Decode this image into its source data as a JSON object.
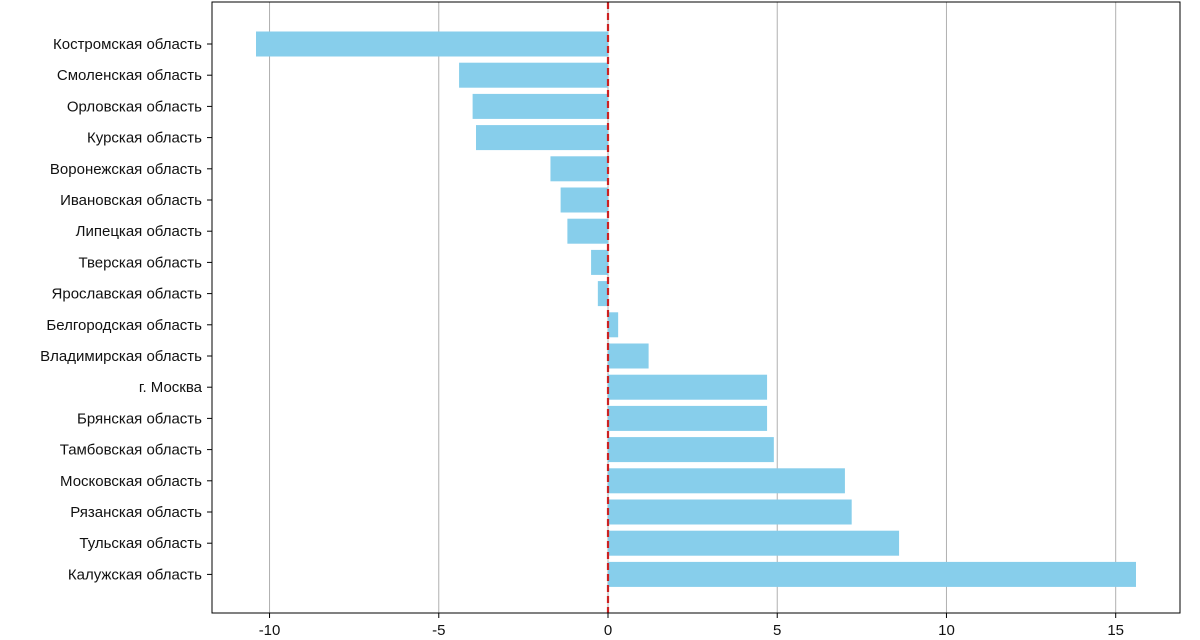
{
  "chart_data": {
    "type": "bar",
    "orientation": "horizontal",
    "categories": [
      "Костромская область",
      "Смоленская область",
      "Орловская область",
      "Курская область",
      "Воронежская область",
      "Ивановская область",
      "Липецкая область",
      "Тверская область",
      "Ярославская область",
      "Белгородская область",
      "Владимирская область",
      "г. Москва",
      "Брянская область",
      "Тамбовская область",
      "Московская область",
      "Рязанская область",
      "Тульская область",
      "Калужская область"
    ],
    "values": [
      -10.4,
      -4.4,
      -4.0,
      -3.9,
      -1.7,
      -1.4,
      -1.2,
      -0.5,
      -0.3,
      0.3,
      1.2,
      4.7,
      4.7,
      4.9,
      7.0,
      7.2,
      8.6,
      15.6
    ],
    "xlim": [
      -11.7,
      16.9
    ],
    "xticks": [
      -10,
      -5,
      0,
      5,
      10,
      15
    ],
    "xtick_labels": [
      "-10",
      "-5",
      "0",
      "5",
      "10",
      "15"
    ],
    "grid": "vertical",
    "reference_line": {
      "x": 0,
      "style": "dashed"
    },
    "colors": {
      "bar": "#87ceeb",
      "reference_line": "#cc2222",
      "grid": "#b0b0b0",
      "axis": "#000000"
    }
  }
}
